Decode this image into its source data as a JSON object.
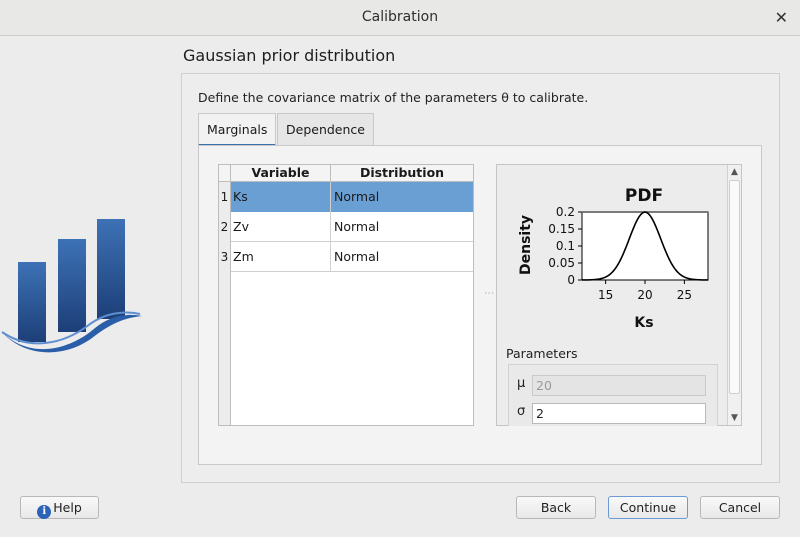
{
  "window": {
    "title": "Calibration",
    "close_glyph": "✕"
  },
  "wizard": {
    "title": "Gaussian prior distribution",
    "description": "Define the covariance matrix of the parameters θ to calibrate."
  },
  "tabs": [
    {
      "label": "Marginals",
      "active": true
    },
    {
      "label": "Dependence",
      "active": false
    }
  ],
  "table": {
    "headers": [
      "Variable",
      "Distribution"
    ],
    "rows": [
      {
        "num": "1",
        "variable": "Ks",
        "distribution": "Normal",
        "selected": true
      },
      {
        "num": "2",
        "variable": "Zv",
        "distribution": "Normal",
        "selected": false
      },
      {
        "num": "3",
        "variable": "Zm",
        "distribution": "Normal",
        "selected": false
      }
    ]
  },
  "chart_data": {
    "type": "line",
    "title": "PDF",
    "xlabel": "Ks",
    "ylabel": "Density",
    "xlim": [
      12,
      28
    ],
    "ylim": [
      0,
      0.2
    ],
    "xticks": [
      "15",
      "20",
      "25"
    ],
    "yticks": [
      "0",
      "0.05",
      "0.1",
      "0.15",
      "0.2"
    ],
    "distribution": {
      "name": "Normal",
      "mu": 20,
      "sigma": 2
    },
    "grid": false
  },
  "parameters": {
    "label": "Parameters",
    "mu_symbol": "μ",
    "mu_value": "20",
    "sigma_symbol": "σ",
    "sigma_value": "2"
  },
  "buttons": {
    "help": "Help",
    "back": "Back",
    "continue": "Continue",
    "cancel": "Cancel"
  },
  "colors": {
    "selection": "#6a9fd4",
    "accent": "#3b6fb0"
  },
  "icons": {
    "help": "help-circle-icon",
    "close": "close-icon"
  }
}
